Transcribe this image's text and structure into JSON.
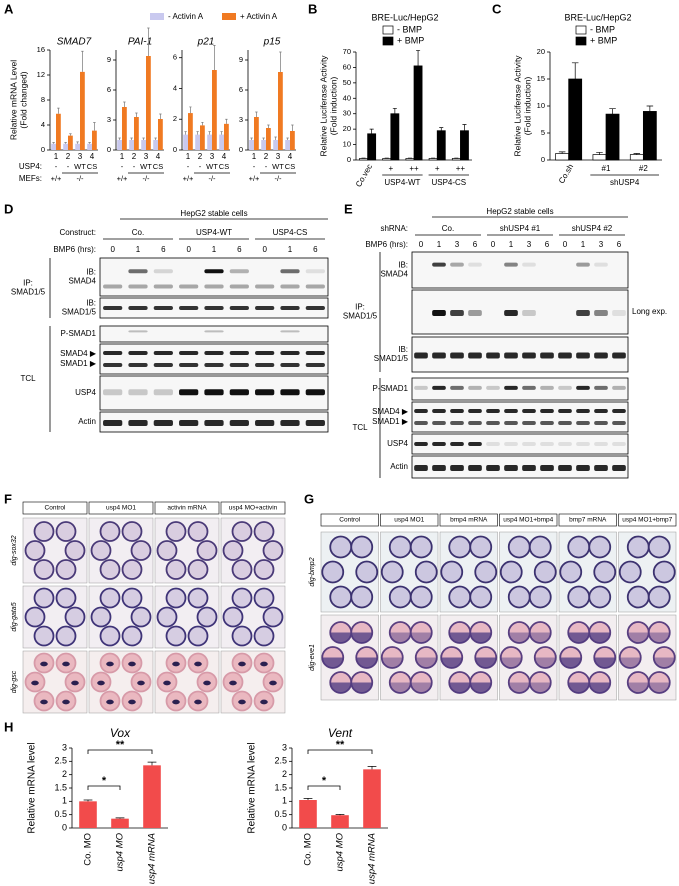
{
  "panel_letters": [
    "A",
    "B",
    "C",
    "D",
    "E",
    "F",
    "G",
    "H"
  ],
  "chart_data": [
    {
      "type": "bar",
      "ylabel": [
        "Relative mRNA Level",
        "(Fold changed)"
      ],
      "series": [
        {
          "name": "- Activin A",
          "color": "#c9c9ef"
        },
        {
          "name": "+ Activin A",
          "color": "#f07a22"
        }
      ],
      "categories": [
        "1",
        "2",
        "3",
        "4"
      ],
      "row_labels": [
        "USP4:",
        "MEFs:"
      ],
      "usp4": [
        "-",
        "-",
        "WT",
        "CS"
      ],
      "mefs": [
        "+/+",
        "-/-"
      ],
      "subplots": [
        {
          "title": "SMAD7",
          "ylim": [
            0,
            16
          ],
          "yticks": [
            0,
            4,
            8,
            12,
            16
          ],
          "series": [
            {
              "values": [
                1,
                1,
                1,
                1
              ],
              "errors": [
                0.2,
                0.2,
                0.3,
                0.2
              ]
            },
            {
              "values": [
                5.8,
                2.3,
                12.5,
                3.1
              ],
              "errors": [
                0.9,
                0.3,
                3.3,
                1.3
              ]
            }
          ]
        },
        {
          "title": "PAI-1",
          "ylim": [
            0,
            10
          ],
          "yticks": [
            0,
            3,
            6,
            9
          ],
          "series": [
            {
              "values": [
                1,
                1,
                1,
                1
              ],
              "errors": [
                0.2,
                0.2,
                0.2,
                0.2
              ]
            },
            {
              "values": [
                4.3,
                3.3,
                9.4,
                3.1
              ],
              "errors": [
                0.5,
                0.4,
                2.8,
                0.5
              ]
            }
          ]
        },
        {
          "title": "p21",
          "ylim": [
            0,
            6.5
          ],
          "yticks": [
            0,
            2,
            4,
            6
          ],
          "series": [
            {
              "values": [
                1,
                1,
                1,
                1
              ],
              "errors": [
                0.2,
                0.2,
                0.2,
                0.2
              ]
            },
            {
              "values": [
                2.4,
                1.6,
                5.2,
                1.7
              ],
              "errors": [
                0.4,
                0.2,
                1.6,
                0.3
              ]
            }
          ]
        },
        {
          "title": "p15",
          "ylim": [
            0,
            10
          ],
          "yticks": [
            0,
            3,
            6,
            9
          ],
          "series": [
            {
              "values": [
                1,
                1,
                1,
                1
              ],
              "errors": [
                0.2,
                0.2,
                0.3,
                0.2
              ]
            },
            {
              "values": [
                3.3,
                2.2,
                7.8,
                1.9
              ],
              "errors": [
                0.5,
                0.3,
                2.0,
                0.6
              ]
            }
          ]
        }
      ]
    },
    {
      "type": "bar",
      "title": "BRE-Luc/HepG2",
      "ylabel": [
        "Relative Luciferase Activity",
        "(Fold induction)"
      ],
      "series": [
        {
          "name": "- BMP",
          "color": "#ffffff",
          "values": [
            1,
            1,
            1,
            1,
            1
          ],
          "errors": [
            0.2,
            0.2,
            0.2,
            0.2,
            0.2
          ]
        },
        {
          "name": "+ BMP",
          "color": "#000000",
          "values": [
            17,
            30,
            61,
            19,
            19
          ],
          "errors": [
            3,
            3.5,
            10,
            2,
            4
          ]
        }
      ],
      "categories": [
        "Co.vec",
        "+",
        "++",
        "+",
        "++"
      ],
      "groups": [
        "USP4-WT",
        "USP4-CS"
      ],
      "ylim": [
        0,
        70
      ],
      "yticks": [
        0,
        10,
        20,
        30,
        40,
        50,
        60,
        70
      ]
    },
    {
      "type": "bar",
      "title": "BRE-Luc/HepG2",
      "ylabel": [
        "Relative Luciferase Activity",
        "(Fold induction)"
      ],
      "series": [
        {
          "name": "- BMP",
          "color": "#ffffff",
          "values": [
            1.2,
            1,
            1
          ],
          "errors": [
            0.3,
            0.4,
            0.2
          ]
        },
        {
          "name": "+ BMP",
          "color": "#000000",
          "values": [
            15,
            8.5,
            9
          ],
          "errors": [
            3,
            1,
            1
          ]
        }
      ],
      "categories": [
        "Co.sh",
        "#1",
        "#2"
      ],
      "groups": [
        "shUSP4"
      ],
      "ylim": [
        0,
        20
      ],
      "yticks": [
        0,
        5,
        10,
        15,
        20
      ]
    },
    {
      "type": "bar",
      "title": "Vox",
      "ylabel": "Relative mRNA level",
      "series": [
        {
          "color": "#f24b4b",
          "values": [
            1,
            0.35,
            2.35
          ],
          "errors": [
            0.05,
            0.03,
            0.12
          ]
        }
      ],
      "categories": [
        "Co. MO",
        "usp4 MO",
        "usp4 mRNA"
      ],
      "annotations": [
        "*",
        "**"
      ],
      "ylim": [
        0,
        3
      ],
      "yticks": [
        0,
        0.5,
        1,
        1.5,
        2,
        2.5,
        3
      ]
    },
    {
      "type": "bar",
      "title": "Vent",
      "ylabel": "Relative mRNA level",
      "series": [
        {
          "color": "#f24b4b",
          "values": [
            1.05,
            0.48,
            2.2
          ],
          "errors": [
            0.06,
            0.03,
            0.11
          ]
        }
      ],
      "categories": [
        "Co. MO",
        "usp4 MO",
        "usp4 mRNA"
      ],
      "annotations": [
        "*",
        "**"
      ],
      "ylim": [
        0,
        3
      ],
      "yticks": [
        0,
        0.5,
        1,
        1.5,
        2,
        2.5,
        3
      ]
    }
  ],
  "panel_d": {
    "header": "HepG2 stable cells",
    "group_label": "Construct:",
    "groups": [
      "Co.",
      "USP4-WT",
      "USP4-CS"
    ],
    "time_label": "BMP6 (hrs):",
    "times": [
      0,
      1,
      6
    ],
    "ip_label": [
      "IP:",
      "SMAD1/5"
    ],
    "ip_blots": [
      [
        "IB:",
        "SMAD4"
      ],
      [
        "IB:",
        "SMAD1/5"
      ]
    ],
    "tcl_label": "TCL",
    "tcl_blots": [
      [
        "P-SMAD1"
      ],
      [
        "SMAD4 ▶",
        "SMAD1 ▶"
      ],
      [
        "USP4"
      ],
      [
        "Actin"
      ]
    ]
  },
  "panel_e": {
    "header": "HepG2 stable cells",
    "group_label": "shRNA:",
    "groups": [
      "Co.",
      "shUSP4 #1",
      "shUSP4 #2"
    ],
    "time_label": "BMP6 (hrs):",
    "times": [
      0,
      1,
      3,
      6
    ],
    "ip_label": [
      "IP:",
      "SMAD1/5"
    ],
    "ip_blots": [
      [
        "IB:",
        "SMAD4"
      ],
      [
        "IB:",
        "SMAD1/5"
      ]
    ],
    "long_exp": "Long exp.",
    "tcl_label": "TCL",
    "tcl_blots": [
      [
        "P-SMAD1"
      ],
      [
        "SMAD4 ▶",
        "SMAD1 ▶"
      ],
      [
        "USP4"
      ],
      [
        "Actin"
      ]
    ]
  },
  "panel_f": {
    "columns": [
      "Control",
      "usp4 MO1",
      "activin mRNA",
      "usp4 MO+activin"
    ],
    "rows": [
      "dig-sox32",
      "dig-gata5",
      "dig-gsc"
    ]
  },
  "panel_g": {
    "columns": [
      "Control",
      "usp4 MO1",
      "bmp4 mRNA",
      "usp4 MO1+bmp4",
      "bmp7 mRNA",
      "usp4 MO1+bmp7"
    ],
    "rows": [
      "dig-bmp2",
      "dig-eve1"
    ]
  }
}
